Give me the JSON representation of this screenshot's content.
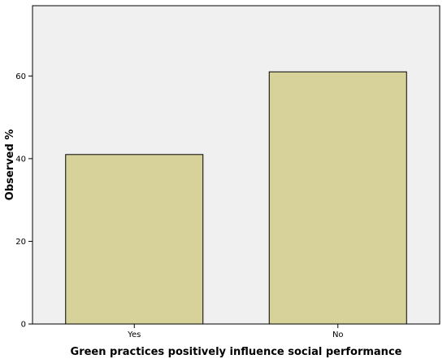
{
  "chart_data": {
    "type": "bar",
    "categories": [
      "Yes",
      "No"
    ],
    "values": [
      41,
      61
    ],
    "xlabel": "Green practices positively influence social performance",
    "ylabel": "Observed %",
    "ylim": [
      0,
      77
    ],
    "yticks": [
      0,
      20,
      40,
      60
    ],
    "grid": false,
    "colors": {
      "bar_fill": "#d6d29a",
      "bar_stroke": "#000000",
      "plot_bg": "#f0f0f0",
      "axis": "#000000"
    }
  }
}
